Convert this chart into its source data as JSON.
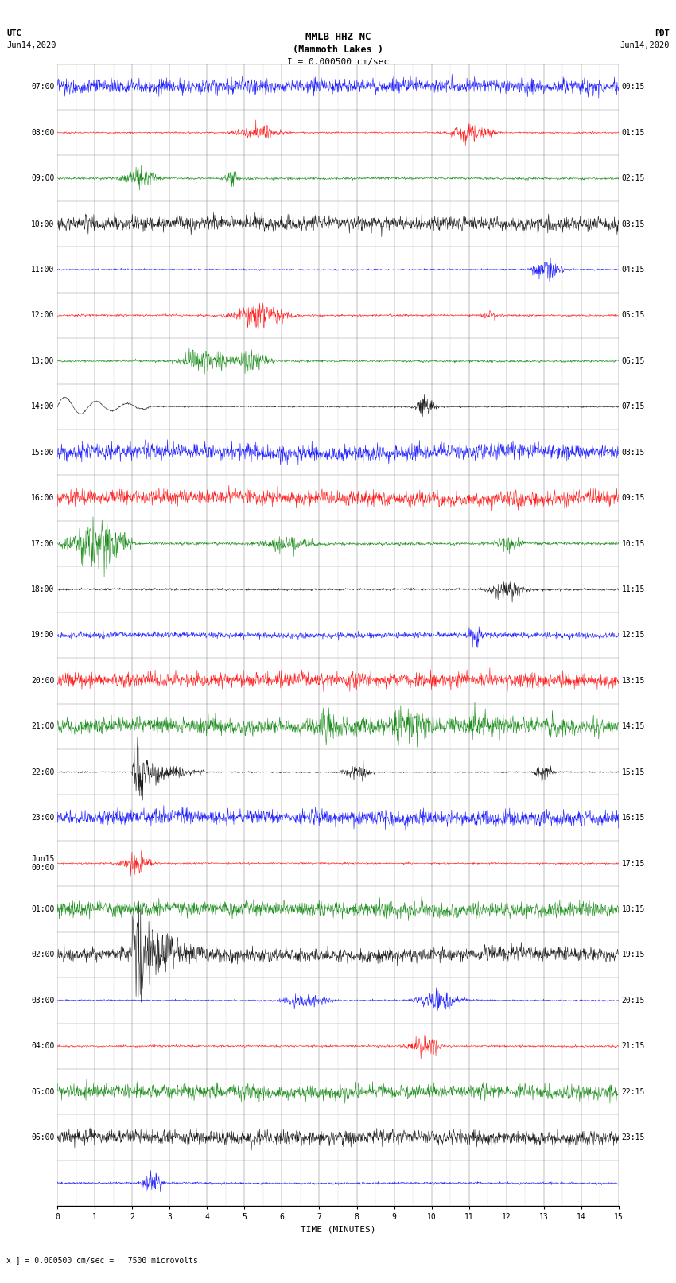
{
  "title_line1": "MMLB HHZ NC",
  "title_line2": "(Mammoth Lakes )",
  "title_line3": "I = 0.000500 cm/sec",
  "left_header": "UTC\nJun14,2020",
  "right_header": "PDT\nJun14,2020",
  "bottom_label": "TIME (MINUTES)",
  "bottom_note": "x ] = 0.000500 cm/sec =   7500 microvolts",
  "utc_labels": [
    "07:00",
    "08:00",
    "09:00",
    "10:00",
    "11:00",
    "12:00",
    "13:00",
    "14:00",
    "15:00",
    "16:00",
    "17:00",
    "18:00",
    "19:00",
    "20:00",
    "21:00",
    "22:00",
    "23:00",
    "Jun15\n00:00",
    "01:00",
    "02:00",
    "03:00",
    "04:00",
    "05:00",
    "06:00",
    ""
  ],
  "pdt_labels": [
    "00:15",
    "01:15",
    "02:15",
    "03:15",
    "04:15",
    "05:15",
    "06:15",
    "07:15",
    "08:15",
    "09:15",
    "10:15",
    "11:15",
    "12:15",
    "13:15",
    "14:15",
    "15:15",
    "16:15",
    "17:15",
    "18:15",
    "19:15",
    "20:15",
    "21:15",
    "22:15",
    "23:15",
    ""
  ],
  "n_rows": 25,
  "n_minutes": 15,
  "bg_color": "#ffffff",
  "grid_color": "#888888",
  "trace_colors_cycle": [
    "blue",
    "red",
    "green",
    "black"
  ],
  "tick_label_fontsize": 7,
  "title_fontsize": 9,
  "header_fontsize": 7.5
}
